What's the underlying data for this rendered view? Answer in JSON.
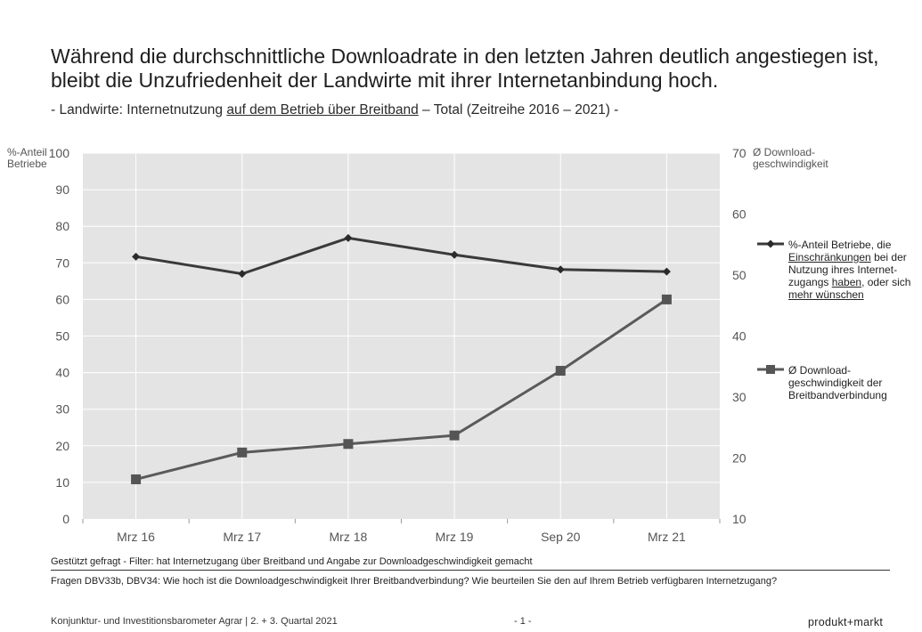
{
  "header": {
    "title_line1": "Während die durchschnittliche Downloadrate in den letzten Jahren deutlich angestiegen ist,",
    "title_line2": "bleibt die Unzufriedenheit der Landwirte mit ihrer Internetanbindung hoch.",
    "subtitle_pre": "- Landwirte: Internetnutzung ",
    "subtitle_underlined": "auf dem Betrieb über Breitband",
    "subtitle_post": " – Total (Zeitreihe 2016 – 2021) -"
  },
  "chart_data": {
    "type": "line",
    "categories": [
      "Mrz 16",
      "Mrz 17",
      "Mrz 18",
      "Mrz 19",
      "Sep 20",
      "Mrz 21"
    ],
    "y_left": {
      "label_line1": "%-Anteil",
      "label_line2": "Betriebe",
      "ylim": [
        0,
        100
      ],
      "ticks": [
        0,
        10,
        20,
        30,
        40,
        50,
        60,
        70,
        80,
        90,
        100
      ]
    },
    "y_right": {
      "label_line1": "Ø Download-",
      "label_line2": "geschwindigkeit",
      "ylim": [
        10,
        70
      ],
      "ticks": [
        10,
        20,
        30,
        40,
        50,
        60,
        70
      ]
    },
    "grid": true,
    "legend_position": "right",
    "series": [
      {
        "name": "%-Anteil Betriebe, die Einschränkungen bei der Nutzung ihres Internetzugangs haben, oder sich mehr wünschen",
        "axis": "left",
        "marker": "diamond",
        "color": "#3a3a3a",
        "values": [
          71.7,
          67.0,
          76.8,
          72.2,
          68.2,
          67.6
        ]
      },
      {
        "name": "Ø Download-geschwindigkeit der Breitbandverbindung",
        "axis": "right",
        "marker": "square",
        "color": "#5a5a5a",
        "values": [
          16.5,
          20.9,
          22.3,
          23.7,
          34.3,
          46.0
        ]
      }
    ]
  },
  "legend": {
    "s1_l1": "%-Anteil Betriebe, die",
    "s1_l2a": "Einschränkungen",
    "s1_l2b": " bei der",
    "s1_l3": "Nutzung ihres Internet-",
    "s1_l4a": "zugangs ",
    "s1_l4b": "haben",
    "s1_l4c": ", oder sich",
    "s1_l5": "mehr wünschen",
    "s2_l1": "Ø Download-",
    "s2_l2": "geschwindigkeit der",
    "s2_l3": "Breitbandverbindung"
  },
  "notes": {
    "filter": "Gestützt gefragt - Filter: hat Internetzugang über Breitband und Angabe zur Downloadgeschwindigkeit gemacht",
    "questions": "Fragen DBV33b, DBV34: Wie hoch ist die Downloadgeschwindigkeit Ihrer Breitbandverbindung? Wie beurteilen Sie den auf Ihrem Betrieb verfügbaren Internetzugang?"
  },
  "footer": {
    "left": "Konjunktur- und Investitionsbarometer Agrar | 2. + 3. Quartal 2021",
    "page": "- 1 -",
    "brand": "produkt+markt"
  }
}
